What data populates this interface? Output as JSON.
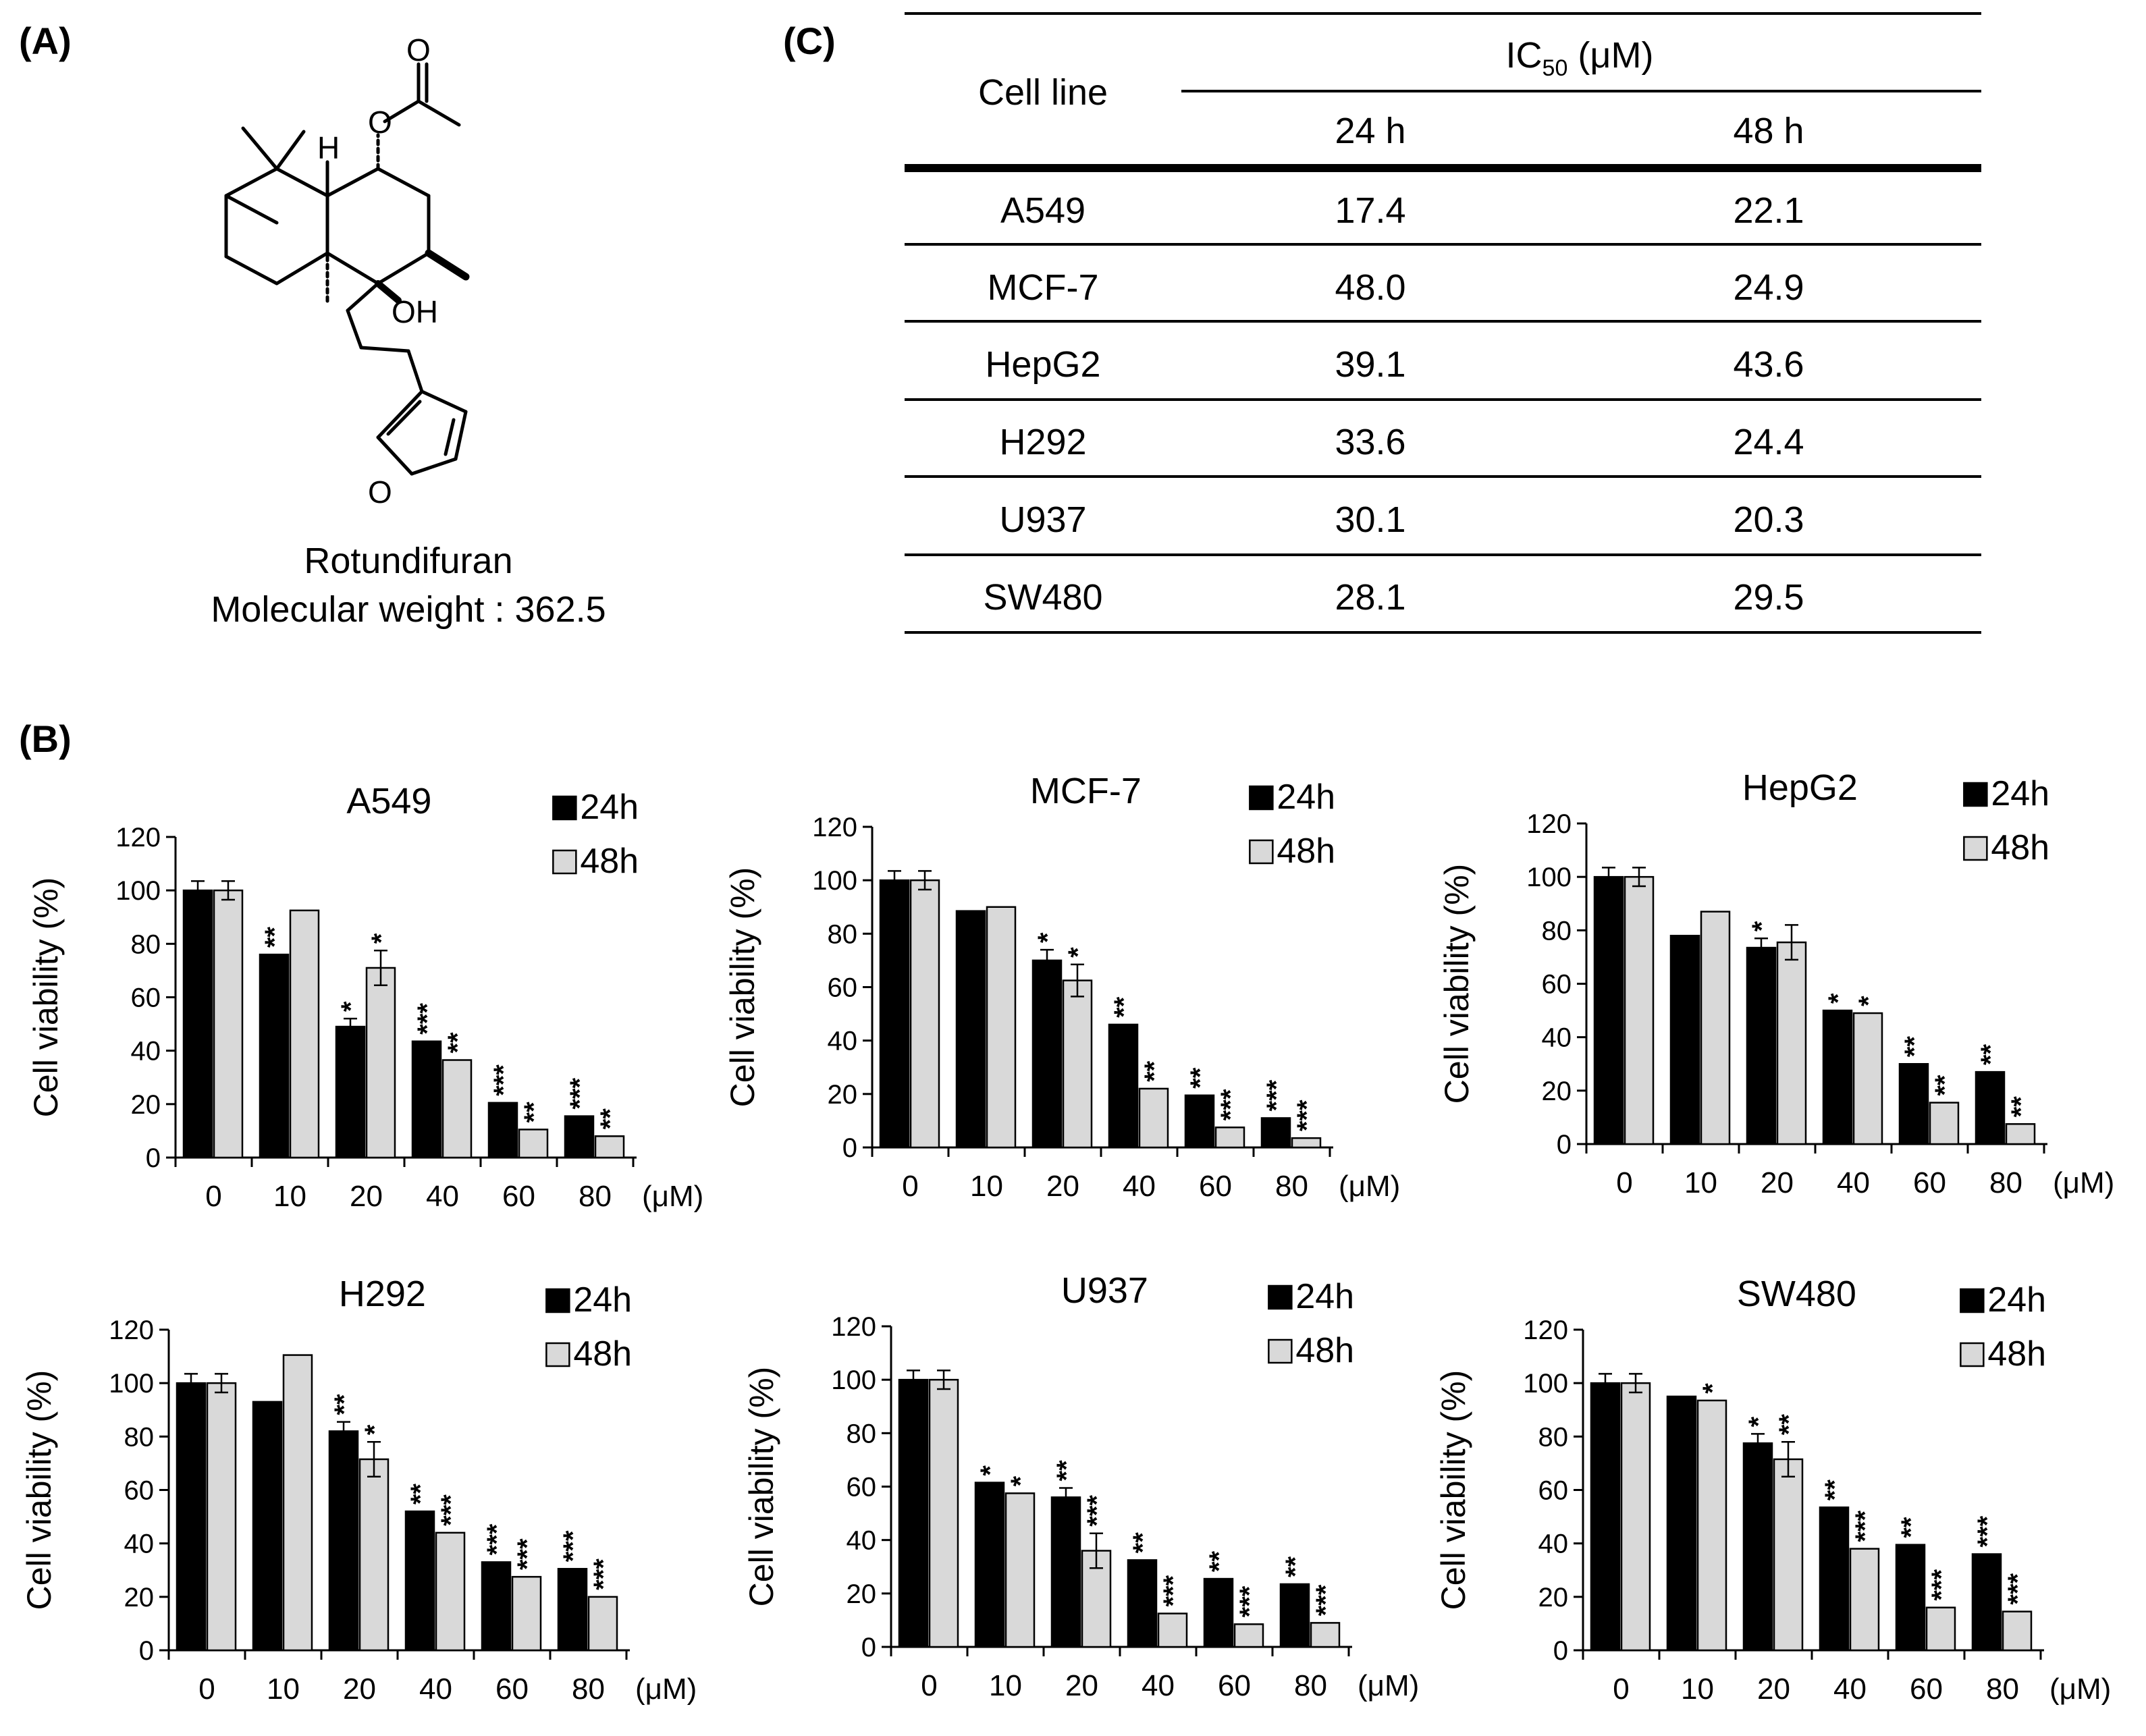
{
  "panels": {
    "A": "(A)",
    "B": "(B)",
    "C": "(C)"
  },
  "molecule": {
    "name": "Rotundifuran",
    "mw_text": "Molecular weight : 362.5",
    "atom_labels": {
      "carbonyl_o": "O",
      "ester_o": "O",
      "hydrogen": "H",
      "hydroxyl": "OH",
      "furan_o": "O"
    }
  },
  "ic50_table": {
    "row_header": "Cell line",
    "group_header_main": "IC",
    "group_header_sub": "50",
    "group_header_unit": " (μM)",
    "columns": [
      "24 h",
      "48 h"
    ],
    "rows": [
      {
        "cell": "A549",
        "h24": "17.4",
        "h48": "22.1"
      },
      {
        "cell": "MCF-7",
        "h24": "48.0",
        "h48": "24.9"
      },
      {
        "cell": "HepG2",
        "h24": "39.1",
        "h48": "43.6"
      },
      {
        "cell": "H292",
        "h24": "33.6",
        "h48": "24.4"
      },
      {
        "cell": "U937",
        "h24": "30.1",
        "h48": "20.3"
      },
      {
        "cell": "SW480",
        "h24": "28.1",
        "h48": "29.5"
      }
    ]
  },
  "colors": {
    "bar_24h": "#000000",
    "bar_48h": "#d9d9d9",
    "axis": "#000000"
  },
  "chart_data": [
    {
      "type": "bar",
      "title": "A549",
      "categories": [
        "0",
        "10",
        "20",
        "40",
        "60",
        "80"
      ],
      "unit_label": "(μM)",
      "ylabel": "Cell viability (%)",
      "ylim": [
        0,
        120
      ],
      "yticks": [
        0,
        20,
        40,
        60,
        80,
        100,
        120
      ],
      "legend_position": "top-right",
      "series": [
        {
          "name": "24h",
          "values": [
            100,
            76,
            49,
            43.5,
            20.5,
            15.5
          ],
          "errors": [
            3.5,
            0,
            3,
            0,
            0,
            0
          ],
          "stars": [
            "",
            "**",
            "*",
            "***",
            "***",
            "***"
          ]
        },
        {
          "name": "48h",
          "values": [
            100,
            92.5,
            71,
            36.5,
            10.5,
            8
          ],
          "errors": [
            3.5,
            0,
            6.5,
            0,
            0,
            0
          ],
          "stars": [
            "",
            "",
            "*",
            "**",
            "**",
            "**"
          ]
        }
      ]
    },
    {
      "type": "bar",
      "title": "MCF-7",
      "categories": [
        "0",
        "10",
        "20",
        "40",
        "60",
        "80"
      ],
      "unit_label": "(μM)",
      "ylabel": "Cell viability (%)",
      "ylim": [
        0,
        120
      ],
      "yticks": [
        0,
        20,
        40,
        60,
        80,
        100,
        120
      ],
      "legend_position": "top-right",
      "series": [
        {
          "name": "24h",
          "values": [
            100,
            88.5,
            70,
            46,
            19.5,
            11
          ],
          "errors": [
            3.5,
            0,
            4,
            0,
            0,
            0
          ],
          "stars": [
            "",
            "",
            "*",
            "**",
            "**",
            "***"
          ]
        },
        {
          "name": "48h",
          "values": [
            100,
            90,
            62.5,
            22,
            7.5,
            3.5
          ],
          "errors": [
            3.5,
            0,
            6,
            0,
            0,
            0
          ],
          "stars": [
            "",
            "",
            "*",
            "**",
            "***",
            "***"
          ]
        }
      ]
    },
    {
      "type": "bar",
      "title": "HepG2",
      "categories": [
        "0",
        "10",
        "20",
        "40",
        "60",
        "80"
      ],
      "unit_label": "(μM)",
      "ylabel": "Cell viability (%)",
      "ylim": [
        0,
        120
      ],
      "yticks": [
        0,
        20,
        40,
        60,
        80,
        100,
        120
      ],
      "legend_position": "top-right",
      "series": [
        {
          "name": "24h",
          "values": [
            100,
            78,
            73.5,
            50,
            30,
            27
          ],
          "errors": [
            3.5,
            0,
            3.5,
            0,
            0,
            0
          ],
          "stars": [
            "",
            "",
            "*",
            "*",
            "**",
            "**"
          ]
        },
        {
          "name": "48h",
          "values": [
            100,
            87,
            75.5,
            49,
            15.5,
            7.5
          ],
          "errors": [
            3.5,
            0,
            6.5,
            0,
            0,
            0
          ],
          "stars": [
            "",
            "",
            "",
            "*",
            "**",
            "**"
          ]
        }
      ]
    },
    {
      "type": "bar",
      "title": "H292",
      "categories": [
        "0",
        "10",
        "20",
        "40",
        "60",
        "80"
      ],
      "unit_label": "(μM)",
      "ylabel": "Cell viability (%)",
      "ylim": [
        0,
        120
      ],
      "yticks": [
        0,
        20,
        40,
        60,
        80,
        100,
        120
      ],
      "legend_position": "top-right",
      "series": [
        {
          "name": "24h",
          "values": [
            100,
            93,
            82,
            52,
            33,
            30.5
          ],
          "errors": [
            3.5,
            0,
            3.5,
            0,
            0,
            0
          ],
          "stars": [
            "",
            "",
            "**",
            "**",
            "***",
            "***"
          ]
        },
        {
          "name": "48h",
          "values": [
            100,
            110.5,
            71.5,
            44,
            27.5,
            20
          ],
          "errors": [
            3.5,
            0,
            6.5,
            0,
            0,
            0
          ],
          "stars": [
            "",
            "",
            "*",
            "***",
            "***",
            "***"
          ]
        }
      ]
    },
    {
      "type": "bar",
      "title": "U937",
      "categories": [
        "0",
        "10",
        "20",
        "40",
        "60",
        "80"
      ],
      "unit_label": "(μM)",
      "ylabel": "Cell viability (%)",
      "ylim": [
        0,
        120
      ],
      "yticks": [
        0,
        20,
        40,
        60,
        80,
        100,
        120
      ],
      "legend_position": "top-right",
      "series": [
        {
          "name": "24h",
          "values": [
            100,
            61.5,
            56,
            32.5,
            25.5,
            23.5
          ],
          "errors": [
            3.5,
            0,
            3.5,
            0,
            0,
            0
          ],
          "stars": [
            "",
            "*",
            "**",
            "**",
            "**",
            "**"
          ]
        },
        {
          "name": "48h",
          "values": [
            100,
            57.5,
            36,
            12.5,
            8.5,
            9
          ],
          "errors": [
            3.5,
            0,
            6.5,
            0,
            0,
            0
          ],
          "stars": [
            "",
            "*",
            "***",
            "***",
            "***",
            "***"
          ]
        }
      ]
    },
    {
      "type": "bar",
      "title": "SW480",
      "categories": [
        "0",
        "10",
        "20",
        "40",
        "60",
        "80"
      ],
      "unit_label": "(μM)",
      "ylabel": "Cell viability (%)",
      "ylim": [
        0,
        120
      ],
      "yticks": [
        0,
        20,
        40,
        60,
        80,
        100,
        120
      ],
      "legend_position": "top-right",
      "series": [
        {
          "name": "24h",
          "values": [
            100,
            95,
            77.5,
            53.5,
            39.5,
            36
          ],
          "errors": [
            3.5,
            0,
            3.5,
            0,
            0,
            0
          ],
          "stars": [
            "",
            "",
            "*",
            "**",
            "**",
            "***"
          ]
        },
        {
          "name": "48h",
          "values": [
            100,
            93.5,
            71.5,
            38,
            16,
            14.5
          ],
          "errors": [
            3.5,
            0,
            6.5,
            0,
            0,
            0
          ],
          "stars": [
            "",
            "*",
            "**",
            "***",
            "***",
            "***"
          ]
        }
      ]
    }
  ]
}
